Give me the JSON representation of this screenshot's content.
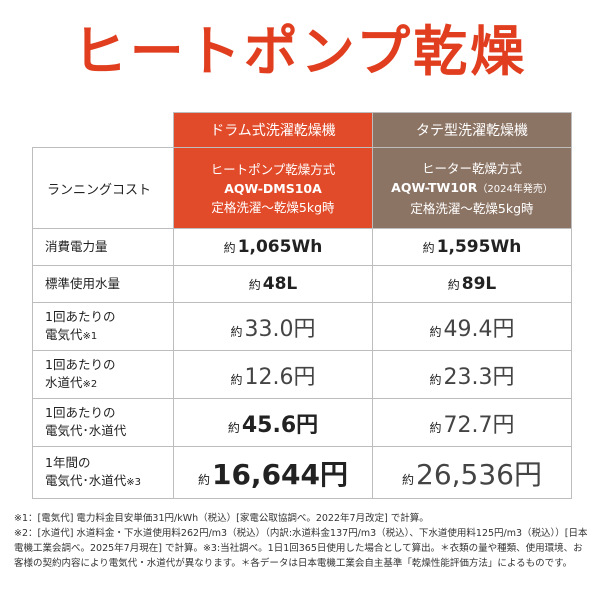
{
  "title": "ヒートポンプ乾燥",
  "header": {
    "row_label": "ランニングコスト",
    "drum": {
      "type": "ドラム式洗濯乾燥機",
      "method": "ヒートポンプ乾燥方式",
      "model": "AQW-DMS10A",
      "condition": "定格洗濯～乾燥5kg時"
    },
    "tate": {
      "type": "タテ型洗濯乾燥機",
      "method": "ヒーター乾燥方式",
      "model": "AQW-TW10R",
      "model_note": "（2024年発売）",
      "condition": "定格洗濯～乾燥5kg時"
    }
  },
  "rows": [
    {
      "label1": "消費電力量",
      "label2": "",
      "note": "",
      "prefix": "約",
      "drum": "1,065Wh",
      "tate": "1,595Wh"
    },
    {
      "label1": "標準使用水量",
      "label2": "",
      "note": "",
      "prefix": "約",
      "drum": "48L",
      "tate": "89L"
    },
    {
      "label1": "1回あたりの",
      "label2": "電気代",
      "note": "※1",
      "prefix": "約",
      "drum": "33.0円",
      "tate": "49.4円"
    },
    {
      "label1": "1回あたりの",
      "label2": "水道代",
      "note": "※2",
      "prefix": "約",
      "drum": "12.6円",
      "tate": "23.3円"
    },
    {
      "label1": "1回あたりの",
      "label2": "電気代･水道代",
      "note": "",
      "prefix": "約",
      "drum": "45.6円",
      "tate": "72.7円"
    },
    {
      "label1": "1年間の",
      "label2": "電気代･水道代",
      "note": "※3",
      "prefix": "約",
      "drum": "16,644円",
      "tate": "26,536円"
    }
  ],
  "footnotes": [
    "※1：[電気代] 電力料金目安単価31円/kWh（税込）[家電公取協調べ。2022年7月改定] で計算。",
    "※2：[水道代] 水道料金・下水道使用料262円/m3（税込）（内訳:水道料金137円/m3（税込）、下水道使用料125円/m3（税込））[日本電機工業会調べ。2025年7月現在] で計算。※3:当社調べ。1日1回365日使用した場合として算出。＊衣類の量や種類、使用環境、お客様の契約内容により電気代・水道代が異なります。＊各データは日本電機工業会自主基準「乾燥性能評価方法」によるものです。"
  ],
  "colors": {
    "accent_red": "#e13e20",
    "drum_bg": "#e14b2a",
    "tate_bg": "#8c7464"
  }
}
